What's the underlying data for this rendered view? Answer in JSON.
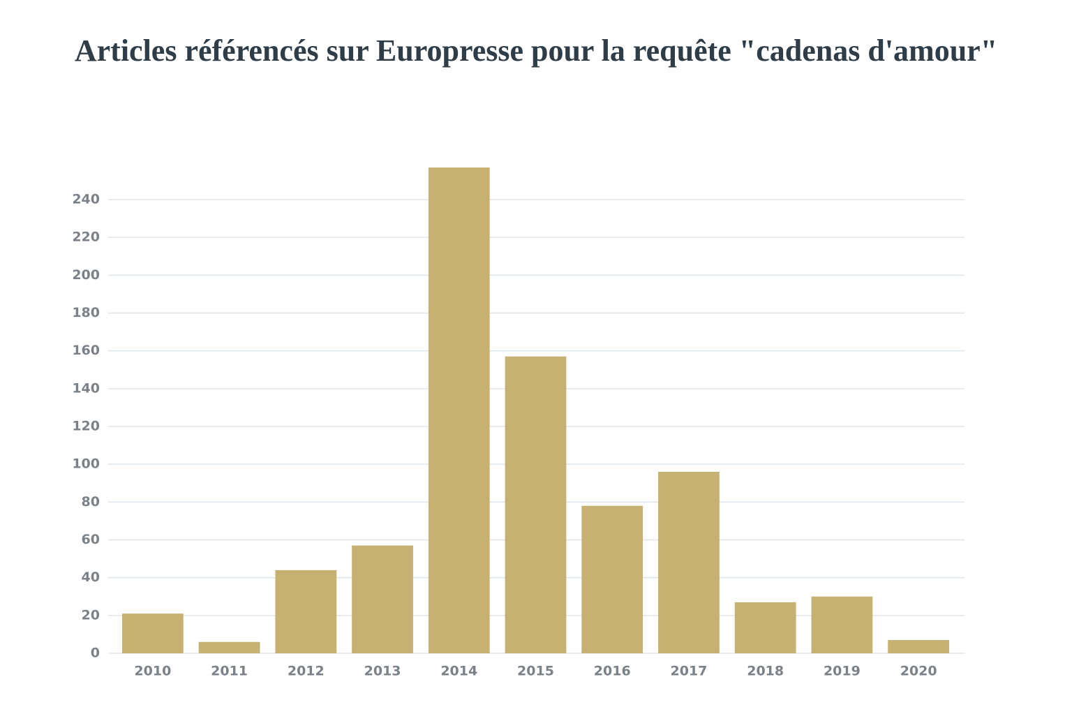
{
  "chart_data": {
    "type": "bar",
    "title": "Articles référencés sur Europresse pour la requête \"cadenas d'amour\"",
    "categories": [
      "2010",
      "2011",
      "2012",
      "2013",
      "2014",
      "2015",
      "2016",
      "2017",
      "2018",
      "2019",
      "2020"
    ],
    "values": [
      21,
      6,
      44,
      57,
      257,
      157,
      78,
      96,
      27,
      30,
      7
    ],
    "color": "#c6b173",
    "ylim": [
      0,
      260
    ],
    "yticks": [
      0,
      20,
      40,
      60,
      80,
      100,
      120,
      140,
      160,
      180,
      200,
      220,
      240
    ],
    "grid": true
  }
}
